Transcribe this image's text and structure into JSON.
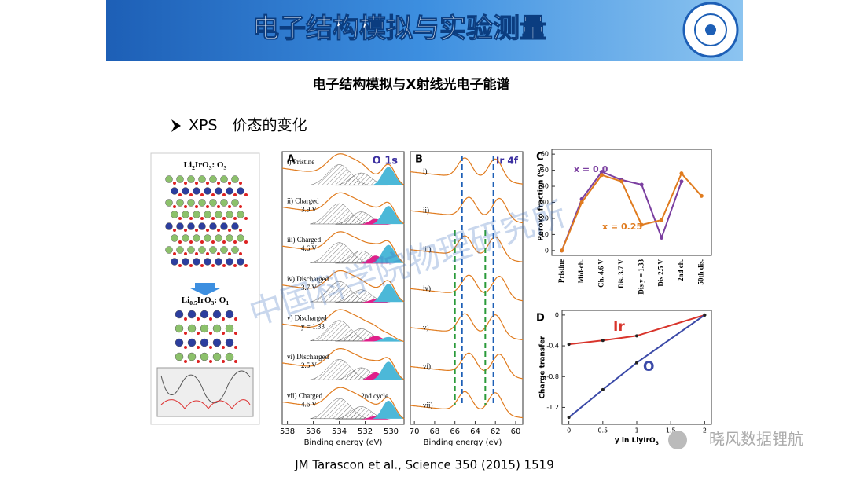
{
  "header": {
    "title": "电子结构模拟与实验测量"
  },
  "subtitle": "电子结构模拟与X射线光电子能谱",
  "bullet": "XPS　价态的变化",
  "figure": {
    "structure": {
      "top_label": "Li2IrO3: O3",
      "bottom_label": "Li0.5IrO3: O1"
    },
    "panel_a": {
      "label": "A",
      "peak": "O 1s",
      "spectra": [
        [
          "i) Pristine"
        ],
        [
          "ii) Charged",
          "3.9 V"
        ],
        [
          "iii) Charged",
          "4.6 V"
        ],
        [
          "iv) Discharged",
          "3.7 V"
        ],
        [
          "v) Discharged",
          "y = 1.33"
        ],
        [
          "vi) Discharged",
          "2.5 V"
        ],
        [
          "vii) Charged",
          "4.6 V"
        ]
      ],
      "note": "2nd cycle",
      "xlim": [
        538.4,
        529
      ],
      "xticks": [
        538,
        536,
        534,
        532,
        530
      ],
      "xlabel": "Binding energy (eV)"
    },
    "panel_b": {
      "label": "B",
      "peak": "Ir 4f",
      "spectra": [
        "i)",
        "ii)",
        "iii)",
        "iv)",
        "v)",
        "vi)",
        "vii)"
      ],
      "xlim": [
        70.4,
        59.3
      ],
      "xticks": [
        70,
        68,
        66,
        64,
        62,
        60
      ],
      "xlabel": "Binding energy (eV)"
    },
    "panel_c": {
      "type": "line",
      "label": "C",
      "ylabel": "Peroxo fraction (%)",
      "categories": [
        "Pristine",
        "Mid-ch.",
        "Ch. 4.6 V",
        "Dis. 3.7 V",
        "Dis y = 1.33",
        "Dis 2.5 V",
        "2nd ch.",
        "50th dis."
      ],
      "series": [
        {
          "name": "x = 0.0",
          "color": "#7b3fa0",
          "values": [
            0,
            32,
            49,
            44,
            41,
            8,
            43,
            null
          ]
        },
        {
          "name": "x = 0.25",
          "color": "#e07b1e",
          "values": [
            0,
            30,
            47,
            43,
            16,
            19,
            48,
            34
          ]
        }
      ],
      "ylim": [
        -3,
        63
      ],
      "yticks": [
        0,
        10,
        20,
        30,
        40,
        50,
        60
      ]
    },
    "panel_d": {
      "type": "line",
      "label": "D",
      "ylabel": "Charge transfer",
      "xlabel": "y in LiyIrO3",
      "series": [
        {
          "name": "Ir",
          "color": "#d8342b",
          "x": [
            0,
            0.5,
            1,
            2
          ],
          "values": [
            -0.38,
            -0.33,
            -0.27,
            0
          ]
        },
        {
          "name": "O",
          "color": "#3b4aa8",
          "x": [
            0,
            0.5,
            1,
            2
          ],
          "values": [
            -1.33,
            -0.97,
            -0.62,
            0
          ]
        }
      ],
      "xlim": [
        -0.1,
        2.1
      ],
      "xticks": [
        0,
        0.5,
        1,
        1.5,
        2
      ],
      "ylim": [
        -1.42,
        0.06
      ],
      "yticks": [
        0,
        -0.4,
        -0.8,
        -1.2
      ]
    }
  },
  "citation": "JM Tarascon et al., Science 350 (2015) 1519",
  "watermarks": [
    "中国科学院物理研究所",
    "晓风数据锂航"
  ]
}
